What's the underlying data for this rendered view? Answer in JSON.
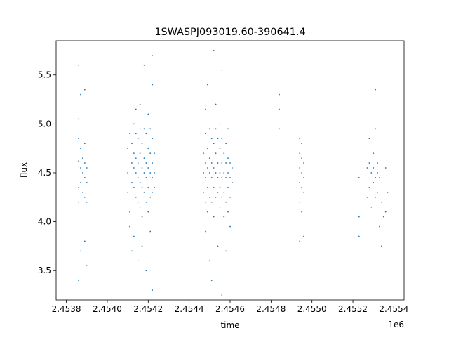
{
  "chart_data": {
    "type": "scatter",
    "title": "1SWASPJ093019.60-390641.4",
    "xlabel": "time",
    "ylabel": "flux",
    "x_offset_label": "1e6",
    "xlim": [
      2.45375,
      2.45545
    ],
    "ylim": [
      3.2,
      5.85
    ],
    "x_units_note": "x values in units of 1e6 days (HJD-like)",
    "grid": false,
    "legend": "none",
    "marker_color": "#1f77b4",
    "x_ticks": [
      2.4538,
      2.454,
      2.4542,
      2.4544,
      2.4546,
      2.4548,
      2.455,
      2.4552,
      2.4554
    ],
    "x_tick_labels": [
      "2.4538",
      "2.4540",
      "2.4542",
      "2.4544",
      "2.4546",
      "2.4548",
      "2.4550",
      "2.4552",
      "2.4554"
    ],
    "y_ticks": [
      3.5,
      4.0,
      4.5,
      5.0,
      5.5
    ],
    "y_tick_labels": [
      "3.5",
      "4.0",
      "4.5",
      "5.0",
      "5.5"
    ],
    "series": [
      {
        "points": [
          [
            2.45386,
            4.62
          ],
          [
            2.45386,
            4.35
          ],
          [
            2.45386,
            4.85
          ],
          [
            2.45386,
            5.05
          ],
          [
            2.45386,
            4.2
          ],
          [
            2.45387,
            4.55
          ],
          [
            2.45387,
            4.75
          ],
          [
            2.45387,
            4.4
          ],
          [
            2.45387,
            5.3
          ],
          [
            2.45387,
            3.7
          ],
          [
            2.45386,
            5.6
          ],
          [
            2.45386,
            3.4
          ],
          [
            2.45388,
            4.5
          ],
          [
            2.45388,
            4.65
          ],
          [
            2.45388,
            4.3
          ],
          [
            2.45389,
            4.45
          ],
          [
            2.45389,
            4.6
          ],
          [
            2.45389,
            4.25
          ],
          [
            2.45389,
            4.8
          ],
          [
            2.45389,
            5.35
          ],
          [
            2.45389,
            3.8
          ],
          [
            2.4539,
            4.4
          ],
          [
            2.4539,
            4.55
          ],
          [
            2.4539,
            4.2
          ],
          [
            2.4539,
            3.55
          ],
          [
            2.4541,
            4.5
          ],
          [
            2.4541,
            4.75
          ],
          [
            2.4541,
            4.3
          ],
          [
            2.45411,
            4.1
          ],
          [
            2.45411,
            4.9
          ],
          [
            2.45411,
            3.95
          ],
          [
            2.45412,
            4.6
          ],
          [
            2.45412,
            4.4
          ],
          [
            2.45412,
            4.8
          ],
          [
            2.45412,
            3.7
          ],
          [
            2.45413,
            4.55
          ],
          [
            2.45413,
            4.7
          ],
          [
            2.45413,
            4.35
          ],
          [
            2.45413,
            5.0
          ],
          [
            2.45413,
            3.85
          ],
          [
            2.45414,
            4.5
          ],
          [
            2.45414,
            4.65
          ],
          [
            2.45414,
            4.25
          ],
          [
            2.45414,
            4.9
          ],
          [
            2.45414,
            5.15
          ],
          [
            2.45415,
            4.45
          ],
          [
            2.45415,
            4.6
          ],
          [
            2.45415,
            4.2
          ],
          [
            2.45415,
            4.85
          ],
          [
            2.45415,
            3.6
          ],
          [
            2.45416,
            4.4
          ],
          [
            2.45416,
            4.7
          ],
          [
            2.45416,
            4.15
          ],
          [
            2.45416,
            4.95
          ],
          [
            2.45416,
            5.2
          ],
          [
            2.45417,
            4.55
          ],
          [
            2.45417,
            4.35
          ],
          [
            2.45417,
            4.8
          ],
          [
            2.45417,
            4.05
          ],
          [
            2.45417,
            3.75
          ],
          [
            2.45418,
            4.5
          ],
          [
            2.45418,
            4.65
          ],
          [
            2.45418,
            4.3
          ],
          [
            2.45418,
            4.95
          ],
          [
            2.45418,
            5.6
          ],
          [
            2.45419,
            4.45
          ],
          [
            2.45419,
            4.6
          ],
          [
            2.45419,
            4.2
          ],
          [
            2.45419,
            4.9
          ],
          [
            2.45419,
            3.5
          ],
          [
            2.4542,
            4.55
          ],
          [
            2.4542,
            4.35
          ],
          [
            2.4542,
            4.75
          ],
          [
            2.4542,
            4.1
          ],
          [
            2.4542,
            5.1
          ],
          [
            2.45421,
            4.5
          ],
          [
            2.45421,
            4.7
          ],
          [
            2.45421,
            4.25
          ],
          [
            2.45421,
            4.95
          ],
          [
            2.45421,
            3.9
          ],
          [
            2.45422,
            4.45
          ],
          [
            2.45422,
            4.6
          ],
          [
            2.45422,
            4.3
          ],
          [
            2.45422,
            4.85
          ],
          [
            2.45422,
            5.4
          ],
          [
            2.45422,
            3.3
          ],
          [
            2.45422,
            5.7
          ],
          [
            2.45423,
            4.5
          ],
          [
            2.45423,
            4.35
          ],
          [
            2.45423,
            4.7
          ],
          [
            2.45447,
            4.5
          ],
          [
            2.45447,
            4.3
          ],
          [
            2.45447,
            4.7
          ],
          [
            2.45448,
            4.45
          ],
          [
            2.45448,
            4.6
          ],
          [
            2.45448,
            4.2
          ],
          [
            2.45448,
            4.9
          ],
          [
            2.45448,
            5.15
          ],
          [
            2.45448,
            3.9
          ],
          [
            2.45449,
            4.55
          ],
          [
            2.45449,
            4.35
          ],
          [
            2.45449,
            4.75
          ],
          [
            2.45449,
            4.1
          ],
          [
            2.45449,
            5.4
          ],
          [
            2.4545,
            4.5
          ],
          [
            2.4545,
            4.65
          ],
          [
            2.4545,
            4.25
          ],
          [
            2.4545,
            4.95
          ],
          [
            2.4545,
            3.6
          ],
          [
            2.45451,
            4.45
          ],
          [
            2.45451,
            4.6
          ],
          [
            2.45451,
            4.2
          ],
          [
            2.45451,
            4.85
          ],
          [
            2.45451,
            3.4
          ],
          [
            2.45452,
            4.55
          ],
          [
            2.45452,
            4.35
          ],
          [
            2.45452,
            4.8
          ],
          [
            2.45452,
            4.05
          ],
          [
            2.45452,
            5.75
          ],
          [
            2.45453,
            4.5
          ],
          [
            2.45453,
            4.7
          ],
          [
            2.45453,
            4.25
          ],
          [
            2.45453,
            4.95
          ],
          [
            2.45453,
            5.2
          ],
          [
            2.45454,
            4.45
          ],
          [
            2.45454,
            4.6
          ],
          [
            2.45454,
            4.3
          ],
          [
            2.45454,
            4.85
          ],
          [
            2.45454,
            3.75
          ],
          [
            2.45455,
            4.5
          ],
          [
            2.45455,
            4.35
          ],
          [
            2.45455,
            4.75
          ],
          [
            2.45455,
            4.15
          ],
          [
            2.45455,
            5.0
          ],
          [
            2.45456,
            4.45
          ],
          [
            2.45456,
            4.6
          ],
          [
            2.45456,
            4.25
          ],
          [
            2.45456,
            4.85
          ],
          [
            2.45456,
            5.55
          ],
          [
            2.45456,
            3.25
          ],
          [
            2.45457,
            4.5
          ],
          [
            2.45457,
            4.3
          ],
          [
            2.45457,
            4.7
          ],
          [
            2.45457,
            4.05
          ],
          [
            2.45458,
            4.45
          ],
          [
            2.45458,
            4.6
          ],
          [
            2.45458,
            4.2
          ],
          [
            2.45458,
            4.8
          ],
          [
            2.45458,
            3.7
          ],
          [
            2.45459,
            4.5
          ],
          [
            2.45459,
            4.35
          ],
          [
            2.45459,
            4.65
          ],
          [
            2.45459,
            4.1
          ],
          [
            2.45459,
            4.95
          ],
          [
            2.4546,
            4.45
          ],
          [
            2.4546,
            4.25
          ],
          [
            2.4546,
            4.6
          ],
          [
            2.4546,
            3.95
          ],
          [
            2.45461,
            4.4
          ],
          [
            2.45461,
            4.55
          ],
          [
            2.45484,
            5.3
          ],
          [
            2.45484,
            5.15
          ],
          [
            2.45484,
            4.95
          ],
          [
            2.45494,
            4.55
          ],
          [
            2.45494,
            4.4
          ],
          [
            2.45494,
            4.7
          ],
          [
            2.45494,
            4.2
          ],
          [
            2.45494,
            4.85
          ],
          [
            2.45494,
            3.8
          ],
          [
            2.45495,
            4.5
          ],
          [
            2.45495,
            4.35
          ],
          [
            2.45495,
            4.65
          ],
          [
            2.45495,
            4.1
          ],
          [
            2.45495,
            4.8
          ],
          [
            2.45496,
            4.45
          ],
          [
            2.45496,
            4.3
          ],
          [
            2.45496,
            4.6
          ],
          [
            2.45496,
            3.85
          ],
          [
            2.45523,
            4.45
          ],
          [
            2.45523,
            4.05
          ],
          [
            2.45523,
            3.85
          ],
          [
            2.45527,
            4.55
          ],
          [
            2.45527,
            4.25
          ],
          [
            2.45528,
            4.6
          ],
          [
            2.45528,
            4.35
          ],
          [
            2.45528,
            4.85
          ],
          [
            2.45529,
            4.5
          ],
          [
            2.45529,
            4.15
          ],
          [
            2.4553,
            4.55
          ],
          [
            2.4553,
            4.4
          ],
          [
            2.4553,
            4.7
          ],
          [
            2.45531,
            4.45
          ],
          [
            2.45531,
            4.95
          ],
          [
            2.45531,
            5.35
          ],
          [
            2.45531,
            4.25
          ],
          [
            2.45532,
            4.5
          ],
          [
            2.45532,
            4.3
          ],
          [
            2.45532,
            4.6
          ],
          [
            2.45533,
            4.45
          ],
          [
            2.45533,
            3.95
          ],
          [
            2.45534,
            4.2
          ],
          [
            2.45534,
            3.75
          ],
          [
            2.45535,
            4.05
          ],
          [
            2.45536,
            4.55
          ],
          [
            2.45536,
            4.1
          ],
          [
            2.45537,
            4.3
          ]
        ]
      }
    ]
  }
}
